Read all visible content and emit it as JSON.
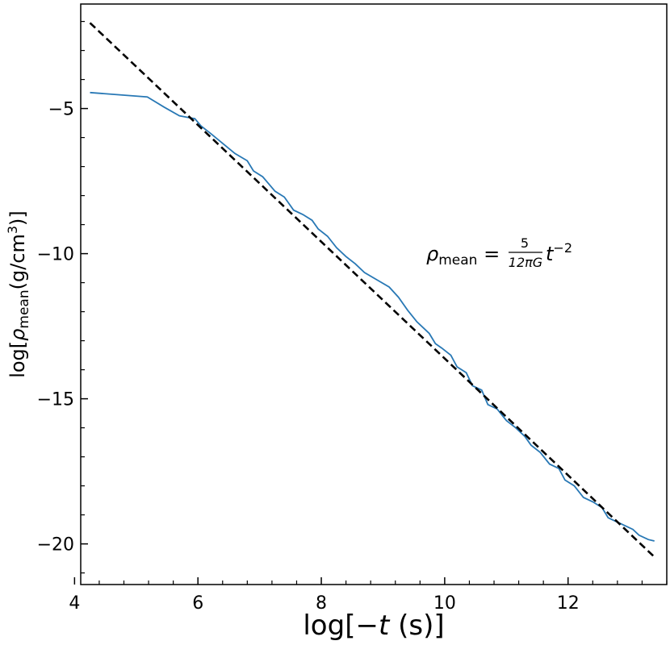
{
  "chart_data": {
    "type": "line",
    "xlabel": {
      "prefix": "log[−",
      "var": "t",
      "suffix": " (s)]"
    },
    "ylabel": {
      "prefix": "log[",
      "var": "ρ",
      "sub": "mean",
      "unit": "(g/cm",
      "sup": "3",
      "close": ")]"
    },
    "xlim": [
      4.1,
      13.6
    ],
    "ylim": [
      -21.4,
      -1.4
    ],
    "xticks": [
      4,
      6,
      8,
      10,
      12
    ],
    "xtick_labels": [
      "4",
      "6",
      "8",
      "10",
      "12"
    ],
    "yticks": [
      -5,
      -10,
      -15,
      -20
    ],
    "ytick_labels": [
      "−5",
      "−10",
      "−15",
      "−20"
    ],
    "x_minor_step": 0.4,
    "y_minor_step": 1,
    "grid": false,
    "annotation": {
      "lhs_var": "ρ",
      "lhs_sub": "mean",
      "eq": " = ",
      "num": "5",
      "den": "12πG",
      "rhs_var": "t",
      "rhs_sup": "−2"
    },
    "series": [
      {
        "style": "solid",
        "color": "#2878b5",
        "x": [
          4.25,
          5.18,
          5.45,
          5.7,
          5.82,
          5.95,
          6.05,
          6.2,
          6.4,
          6.6,
          6.8,
          6.9,
          7.05,
          7.25,
          7.4,
          7.55,
          7.7,
          7.85,
          7.95,
          8.1,
          8.25,
          8.4,
          8.55,
          8.7,
          8.9,
          9.1,
          9.25,
          9.4,
          9.55,
          9.75,
          9.85,
          9.95,
          10.1,
          10.2,
          10.35,
          10.45,
          10.6,
          10.7,
          10.85,
          11.0,
          11.15,
          11.3,
          11.4,
          11.55,
          11.7,
          11.85,
          11.95,
          12.1,
          12.25,
          12.4,
          12.55,
          12.65,
          12.8,
          12.9,
          13.05,
          13.15,
          13.3,
          13.4
        ],
        "y": [
          -4.45,
          -4.6,
          -4.95,
          -5.25,
          -5.3,
          -5.35,
          -5.6,
          -5.85,
          -6.2,
          -6.55,
          -6.8,
          -7.15,
          -7.35,
          -7.85,
          -8.05,
          -8.5,
          -8.65,
          -8.85,
          -9.15,
          -9.4,
          -9.8,
          -10.1,
          -10.35,
          -10.65,
          -10.9,
          -11.15,
          -11.5,
          -11.95,
          -12.35,
          -12.75,
          -13.1,
          -13.25,
          -13.5,
          -13.9,
          -14.1,
          -14.55,
          -14.7,
          -15.2,
          -15.35,
          -15.75,
          -16.0,
          -16.3,
          -16.6,
          -16.85,
          -17.25,
          -17.4,
          -17.8,
          -18.0,
          -18.4,
          -18.55,
          -18.75,
          -19.1,
          -19.25,
          -19.35,
          -19.5,
          -19.7,
          -19.85,
          -19.9
        ]
      },
      {
        "style": "dashed",
        "color": "#000000",
        "x": [
          4.25,
          13.4
        ],
        "y": [
          -2.05,
          -20.45
        ]
      }
    ]
  }
}
